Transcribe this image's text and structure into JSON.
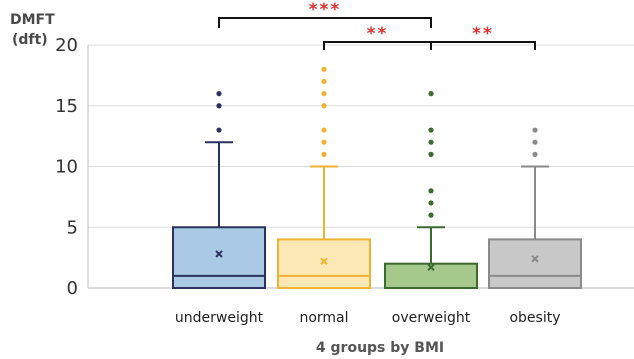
{
  "chart_data": {
    "type": "box",
    "ylabel_line1": "DMFT",
    "ylabel_line2": "(dft)",
    "xlabel": "4 groups by BMI",
    "ylim": [
      0,
      20
    ],
    "yticks": [
      0,
      5,
      10,
      15,
      20
    ],
    "grid": true,
    "groups": [
      {
        "label": "underweight",
        "q1": 0,
        "median": 1,
        "q3": 5,
        "whisker_low": 0,
        "whisker_high": 12,
        "mean": 2.8,
        "outliers": [
          13,
          15,
          16
        ],
        "fill": "#a9c9e4",
        "stroke": "#2b3160",
        "outlier_color": "#2b3160"
      },
      {
        "label": "normal",
        "q1": 0,
        "median": 1,
        "q3": 4,
        "whisker_low": 0,
        "whisker_high": 10,
        "mean": 2.2,
        "outliers": [
          11,
          12,
          13,
          15,
          16,
          17,
          18
        ],
        "fill": "#fbe8b5",
        "stroke": "#f0b233",
        "outlier_color": "#f0b233"
      },
      {
        "label": "overweight",
        "q1": 0,
        "median": 0,
        "q3": 2,
        "whisker_low": 0,
        "whisker_high": 5,
        "mean": 1.7,
        "outliers": [
          6,
          7,
          8,
          11,
          12,
          13,
          16
        ],
        "fill": "#a5c98d",
        "stroke": "#3c6a30",
        "outlier_color": "#3c6a30"
      },
      {
        "label": "obesity",
        "q1": 0,
        "median": 1,
        "q3": 4,
        "whisker_low": 0,
        "whisker_high": 10,
        "mean": 2.4,
        "outliers": [
          11,
          12,
          13
        ],
        "fill": "#c8c8c8",
        "stroke": "#8a8a8a",
        "outlier_color": "#8a8a8a"
      }
    ],
    "significance": [
      {
        "from": 0,
        "to": 2,
        "label": "***"
      },
      {
        "from": 1,
        "to": 2,
        "label": "**"
      },
      {
        "from": 2,
        "to": 3,
        "label": "**"
      }
    ]
  }
}
